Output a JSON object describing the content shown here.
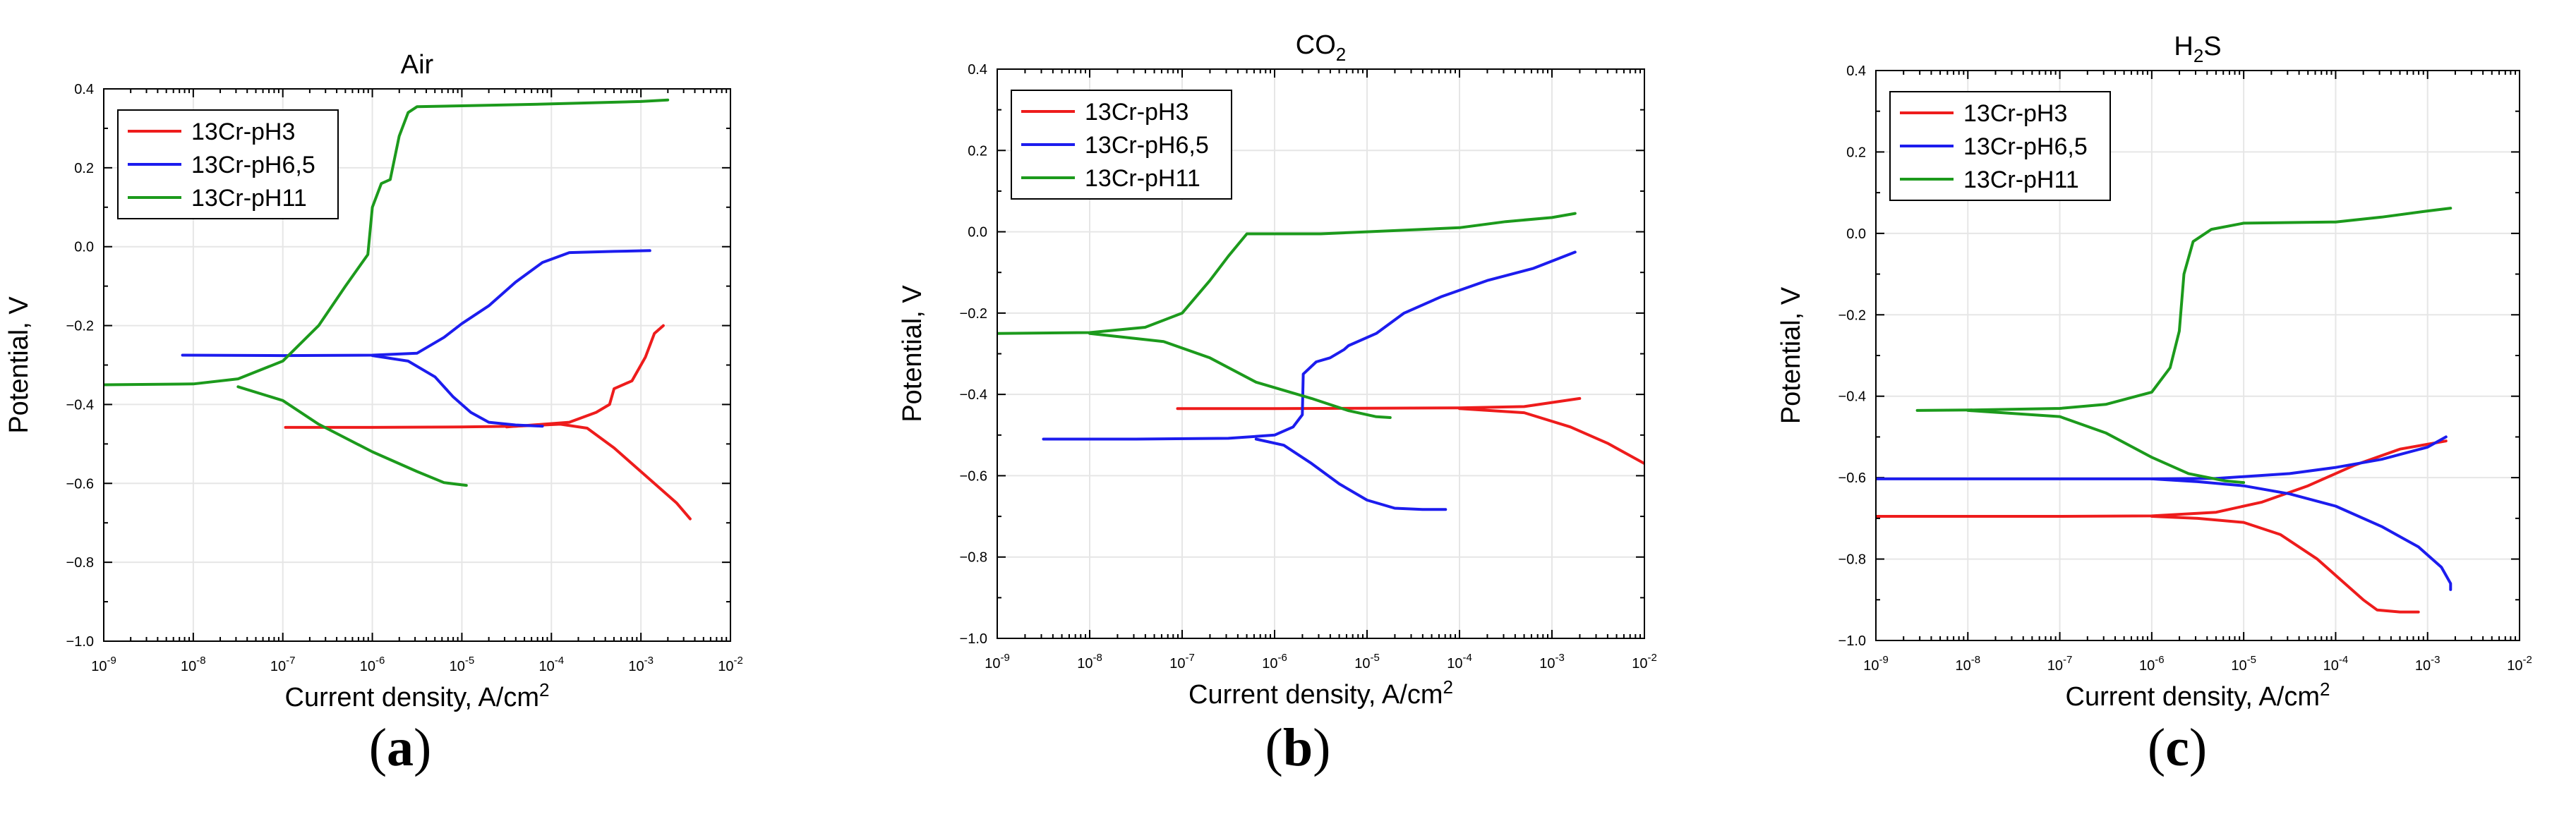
{
  "figure": {
    "panel_labels": [
      "(a)",
      "(b)",
      "(c)"
    ]
  },
  "chart_data": [
    {
      "type": "line",
      "panel": "(a)",
      "title": "Air",
      "title_sub": "",
      "xlabel": "Current density, A/cm",
      "xlabel_sup": "2",
      "ylabel": "Potential, V",
      "xscale": "log",
      "xlim_exp": [
        -9,
        -2
      ],
      "ylim": [
        -1.0,
        0.4
      ],
      "x_ticks": [
        "-9",
        "-8",
        "-7",
        "-6",
        "-5",
        "-4",
        "-3",
        "-2"
      ],
      "y_ticks": [
        "0.4",
        "0.2",
        "0.0",
        "−0.2",
        "−0.4",
        "−0.6",
        "−0.8",
        "−1.0"
      ],
      "y_tick_values": [
        0.4,
        0.2,
        0.0,
        -0.2,
        -0.4,
        -0.6,
        -0.8,
        -1.0
      ],
      "grid": true,
      "legend_position": "top-left",
      "series": [
        {
          "name": "13Cr-pH3",
          "color": "#ee1c1c",
          "points": [
            [
              -6.97,
              -0.458
            ],
            [
              -6.0,
              -0.458
            ],
            [
              -5.0,
              -0.457
            ],
            [
              -4.4,
              -0.455
            ],
            [
              -3.9,
              -0.45
            ],
            [
              -3.6,
              -0.46
            ],
            [
              -3.3,
              -0.51
            ],
            [
              -3.0,
              -0.57
            ],
            [
              -2.6,
              -0.65
            ],
            [
              -2.45,
              -0.69
            ]
          ],
          "points2": [
            [
              -4.5,
              -0.457
            ],
            [
              -3.8,
              -0.445
            ],
            [
              -3.5,
              -0.42
            ],
            [
              -3.35,
              -0.4
            ],
            [
              -3.3,
              -0.36
            ],
            [
              -3.1,
              -0.34
            ],
            [
              -2.95,
              -0.28
            ],
            [
              -2.85,
              -0.22
            ],
            [
              -2.75,
              -0.2
            ]
          ]
        },
        {
          "name": "13Cr-pH6,5",
          "color": "#1c1cee",
          "points": [
            [
              -8.12,
              -0.275
            ],
            [
              -7.0,
              -0.276
            ],
            [
              -6.0,
              -0.275
            ],
            [
              -5.5,
              -0.27
            ],
            [
              -5.2,
              -0.23
            ],
            [
              -5.0,
              -0.195
            ],
            [
              -4.7,
              -0.15
            ],
            [
              -4.4,
              -0.09
            ],
            [
              -4.1,
              -0.04
            ],
            [
              -3.8,
              -0.015
            ],
            [
              -3.3,
              -0.012
            ],
            [
              -2.9,
              -0.01
            ]
          ],
          "points2": [
            [
              -6.0,
              -0.276
            ],
            [
              -5.6,
              -0.29
            ],
            [
              -5.3,
              -0.33
            ],
            [
              -5.1,
              -0.38
            ],
            [
              -4.9,
              -0.42
            ],
            [
              -4.7,
              -0.445
            ],
            [
              -4.4,
              -0.452
            ],
            [
              -4.1,
              -0.455
            ]
          ]
        },
        {
          "name": "13Cr-pH11",
          "color": "#1c9a1c",
          "points": [
            [
              -9.0,
              -0.35
            ],
            [
              -8.0,
              -0.348
            ],
            [
              -7.5,
              -0.335
            ],
            [
              -7.0,
              -0.29
            ],
            [
              -6.6,
              -0.2
            ],
            [
              -6.3,
              -0.1
            ],
            [
              -6.05,
              -0.02
            ],
            [
              -6.0,
              0.1
            ],
            [
              -5.9,
              0.16
            ],
            [
              -5.8,
              0.17
            ],
            [
              -5.7,
              0.28
            ],
            [
              -5.6,
              0.34
            ],
            [
              -5.5,
              0.355
            ],
            [
              -5.0,
              0.357
            ],
            [
              -4.0,
              0.362
            ],
            [
              -3.0,
              0.368
            ],
            [
              -2.7,
              0.372
            ]
          ],
          "points2": [
            [
              -7.5,
              -0.355
            ],
            [
              -7.0,
              -0.39
            ],
            [
              -6.6,
              -0.45
            ],
            [
              -6.0,
              -0.52
            ],
            [
              -5.5,
              -0.57
            ],
            [
              -5.2,
              -0.598
            ],
            [
              -4.95,
              -0.605
            ]
          ]
        }
      ]
    },
    {
      "type": "line",
      "panel": "(b)",
      "title": "CO",
      "title_sub": "2",
      "xlabel": "Current density, A/cm",
      "xlabel_sup": "2",
      "ylabel": "Potential, V",
      "xscale": "log",
      "xlim_exp": [
        -9,
        -2
      ],
      "ylim": [
        -1.0,
        0.4
      ],
      "x_ticks": [
        "-9",
        "-8",
        "-7",
        "-6",
        "-5",
        "-4",
        "-3",
        "-2"
      ],
      "y_ticks": [
        "0.4",
        "0.2",
        "0.0",
        "−0.2",
        "−0.4",
        "−0.6",
        "−0.8",
        "−1.0"
      ],
      "y_tick_values": [
        0.4,
        0.2,
        0.0,
        -0.2,
        -0.4,
        -0.6,
        -0.8,
        -1.0
      ],
      "grid": true,
      "legend_position": "top-left",
      "series": [
        {
          "name": "13Cr-pH3",
          "color": "#ee1c1c",
          "points": [
            [
              -7.05,
              -0.435
            ],
            [
              -6.0,
              -0.435
            ],
            [
              -5.0,
              -0.434
            ],
            [
              -4.0,
              -0.433
            ],
            [
              -3.3,
              -0.43
            ],
            [
              -2.7,
              -0.41
            ]
          ],
          "points2": [
            [
              -4.0,
              -0.435
            ],
            [
              -3.3,
              -0.445
            ],
            [
              -2.8,
              -0.48
            ],
            [
              -2.4,
              -0.52
            ],
            [
              -2.0,
              -0.57
            ]
          ]
        },
        {
          "name": "13Cr-pH6,5",
          "color": "#1c1cee",
          "points": [
            [
              -8.5,
              -0.51
            ],
            [
              -7.5,
              -0.51
            ],
            [
              -6.5,
              -0.508
            ],
            [
              -6.0,
              -0.5
            ],
            [
              -5.8,
              -0.48
            ],
            [
              -5.7,
              -0.45
            ],
            [
              -5.69,
              -0.35
            ],
            [
              -5.55,
              -0.32
            ],
            [
              -5.4,
              -0.31
            ],
            [
              -5.25,
              -0.29
            ],
            [
              -5.2,
              -0.28
            ],
            [
              -4.9,
              -0.25
            ],
            [
              -4.6,
              -0.2
            ],
            [
              -4.2,
              -0.16
            ],
            [
              -3.7,
              -0.12
            ],
            [
              -3.2,
              -0.09
            ],
            [
              -2.75,
              -0.05
            ]
          ],
          "points2": [
            [
              -6.2,
              -0.51
            ],
            [
              -5.9,
              -0.525
            ],
            [
              -5.6,
              -0.57
            ],
            [
              -5.3,
              -0.62
            ],
            [
              -5.0,
              -0.66
            ],
            [
              -4.7,
              -0.68
            ],
            [
              -4.4,
              -0.683
            ],
            [
              -4.15,
              -0.683
            ]
          ]
        },
        {
          "name": "13Cr-pH11",
          "color": "#1c9a1c",
          "points": [
            [
              -9.0,
              -0.25
            ],
            [
              -8.0,
              -0.248
            ],
            [
              -7.4,
              -0.235
            ],
            [
              -7.0,
              -0.2
            ],
            [
              -6.7,
              -0.12
            ],
            [
              -6.5,
              -0.06
            ],
            [
              -6.3,
              -0.005
            ],
            [
              -5.5,
              -0.005
            ],
            [
              -5.0,
              0.0
            ],
            [
              -4.5,
              0.005
            ],
            [
              -4.0,
              0.01
            ],
            [
              -3.5,
              0.025
            ],
            [
              -3.0,
              0.035
            ],
            [
              -2.75,
              0.045
            ]
          ],
          "points2": [
            [
              -8.0,
              -0.25
            ],
            [
              -7.2,
              -0.27
            ],
            [
              -6.7,
              -0.31
            ],
            [
              -6.2,
              -0.37
            ],
            [
              -5.6,
              -0.41
            ],
            [
              -5.2,
              -0.44
            ],
            [
              -4.9,
              -0.455
            ],
            [
              -4.75,
              -0.457
            ]
          ]
        }
      ]
    },
    {
      "type": "line",
      "panel": "(c)",
      "title": "H",
      "title_sub": "2",
      "title_after": "S",
      "xlabel": "Current density, A/cm",
      "xlabel_sup": "2",
      "ylabel": "Potential, V",
      "xscale": "log",
      "xlim_exp": [
        -9,
        -2
      ],
      "ylim": [
        -1.0,
        0.4
      ],
      "x_ticks": [
        "-9",
        "-8",
        "-7",
        "-6",
        "-5",
        "-4",
        "-3",
        "-2"
      ],
      "y_ticks": [
        "0.4",
        "0.2",
        "0.0",
        "−0.2",
        "−0.4",
        "−0.6",
        "−0.8",
        "−1.0"
      ],
      "y_tick_values": [
        0.4,
        0.2,
        0.0,
        -0.2,
        -0.4,
        -0.6,
        -0.8,
        -1.0
      ],
      "grid": true,
      "legend_position": "top-left",
      "series": [
        {
          "name": "13Cr-pH3",
          "color": "#ee1c1c",
          "points": [
            [
              -9.0,
              -0.695
            ],
            [
              -8.0,
              -0.695
            ],
            [
              -7.0,
              -0.695
            ],
            [
              -6.0,
              -0.694
            ],
            [
              -5.3,
              -0.685
            ],
            [
              -4.8,
              -0.66
            ],
            [
              -4.3,
              -0.62
            ],
            [
              -3.8,
              -0.57
            ],
            [
              -3.3,
              -0.53
            ],
            [
              -2.8,
              -0.51
            ]
          ],
          "points2": [
            [
              -6.0,
              -0.695
            ],
            [
              -5.5,
              -0.7
            ],
            [
              -5.0,
              -0.71
            ],
            [
              -4.6,
              -0.74
            ],
            [
              -4.2,
              -0.8
            ],
            [
              -3.9,
              -0.86
            ],
            [
              -3.7,
              -0.9
            ],
            [
              -3.55,
              -0.925
            ],
            [
              -3.3,
              -0.93
            ],
            [
              -3.1,
              -0.93
            ]
          ]
        },
        {
          "name": "13Cr-pH6,5",
          "color": "#1c1cee",
          "points": [
            [
              -9.0,
              -0.603
            ],
            [
              -8.0,
              -0.603
            ],
            [
              -7.0,
              -0.603
            ],
            [
              -6.0,
              -0.603
            ],
            [
              -5.3,
              -0.602
            ],
            [
              -4.5,
              -0.59
            ],
            [
              -4.0,
              -0.575
            ],
            [
              -3.5,
              -0.555
            ],
            [
              -3.0,
              -0.525
            ],
            [
              -2.8,
              -0.5
            ]
          ],
          "points2": [
            [
              -6.0,
              -0.603
            ],
            [
              -5.5,
              -0.61
            ],
            [
              -5.0,
              -0.62
            ],
            [
              -4.5,
              -0.64
            ],
            [
              -4.0,
              -0.67
            ],
            [
              -3.5,
              -0.72
            ],
            [
              -3.1,
              -0.77
            ],
            [
              -2.85,
              -0.82
            ],
            [
              -2.75,
              -0.86
            ],
            [
              -2.75,
              -0.875
            ]
          ]
        },
        {
          "name": "13Cr-pH11",
          "color": "#1c9a1c",
          "points": [
            [
              -8.55,
              -0.435
            ],
            [
              -8.0,
              -0.434
            ],
            [
              -7.0,
              -0.43
            ],
            [
              -6.5,
              -0.42
            ],
            [
              -6.0,
              -0.39
            ],
            [
              -5.8,
              -0.33
            ],
            [
              -5.7,
              -0.24
            ],
            [
              -5.65,
              -0.1
            ],
            [
              -5.55,
              -0.02
            ],
            [
              -5.35,
              0.01
            ],
            [
              -5.0,
              0.025
            ],
            [
              -4.0,
              0.028
            ],
            [
              -3.5,
              0.04
            ],
            [
              -3.0,
              0.055
            ],
            [
              -2.75,
              0.062
            ]
          ],
          "points2": [
            [
              -8.0,
              -0.435
            ],
            [
              -7.0,
              -0.45
            ],
            [
              -6.5,
              -0.49
            ],
            [
              -6.0,
              -0.55
            ],
            [
              -5.6,
              -0.59
            ],
            [
              -5.2,
              -0.608
            ],
            [
              -5.0,
              -0.612
            ]
          ]
        }
      ]
    }
  ]
}
